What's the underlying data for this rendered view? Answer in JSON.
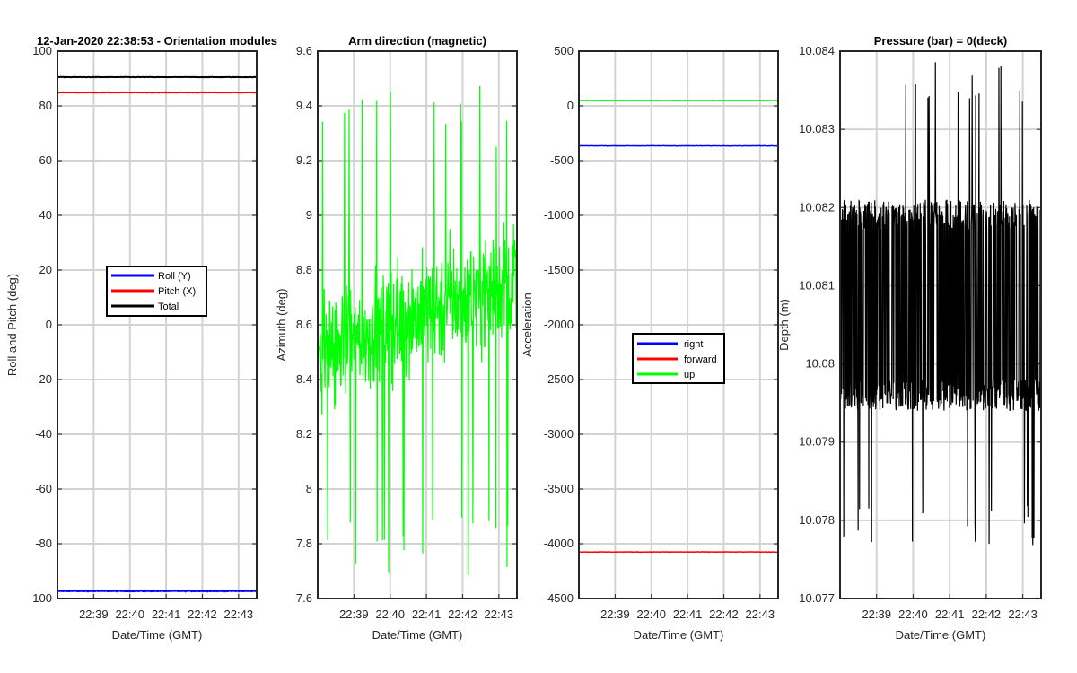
{
  "figure": {
    "background": "#ffffff",
    "grid_color": "#d3d3d3"
  },
  "chart_data": [
    {
      "type": "line",
      "title": "12-Jan-2020 22:38:53 - Orientation modules",
      "xlabel": "Date/Time (GMT)",
      "ylabel": "Roll and Pitch (deg)",
      "x_ticks": [
        "22:39",
        "22:40",
        "22:41",
        "22:42",
        "22:43"
      ],
      "xlim_minutes": [
        0,
        5.5
      ],
      "ylim": [
        -100,
        100
      ],
      "y_ticks": [
        "100",
        "80",
        "60",
        "40",
        "20",
        "0",
        "-20",
        "-40",
        "-60",
        "-80",
        "-100"
      ],
      "grid": true,
      "legend": {
        "placement": "center",
        "entries": [
          "Roll (Y)",
          "Pitch (X)",
          "Total"
        ]
      },
      "series": [
        {
          "name": "Roll (Y)",
          "color": "#0000ff",
          "mean": -97.3,
          "noise": 0.25
        },
        {
          "name": "Pitch (X)",
          "color": "#ff0000",
          "mean": 84.9,
          "noise": 0.15
        },
        {
          "name": "Total",
          "color": "#000000",
          "mean": 90.5,
          "noise": 0.15
        }
      ]
    },
    {
      "type": "line",
      "title": "Arm direction (magnetic)",
      "xlabel": "Date/Time (GMT)",
      "ylabel": "Azimuth (deg)",
      "x_ticks": [
        "22:39",
        "22:40",
        "22:41",
        "22:42",
        "22:43"
      ],
      "xlim_minutes": [
        0,
        5.5
      ],
      "ylim": [
        7.6,
        9.6
      ],
      "y_ticks": [
        "9.6",
        "9.4",
        "9.2",
        "9",
        "8.8",
        "8.6",
        "8.4",
        "8.2",
        "8",
        "7.8",
        "7.6"
      ],
      "grid": true,
      "series": [
        {
          "name": "",
          "color": "#00ff00",
          "mean": 8.5,
          "noise": 0.3,
          "spike_low": 7.65,
          "spike_high": 9.55,
          "trend": 0.05
        }
      ]
    },
    {
      "type": "line",
      "title": "",
      "xlabel": "Date/Time (GMT)",
      "ylabel": "Acceleration",
      "x_ticks": [
        "22:39",
        "22:40",
        "22:41",
        "22:42",
        "22:43"
      ],
      "xlim_minutes": [
        0,
        5.5
      ],
      "ylim": [
        -4500,
        500
      ],
      "y_ticks": [
        "500",
        "0",
        "-500",
        "-1000",
        "-1500",
        "-2000",
        "-2500",
        "-3000",
        "-3500",
        "-4000",
        "-4500"
      ],
      "grid": true,
      "legend": {
        "placement": "center-right",
        "entries": [
          "right",
          "forward",
          "up"
        ]
      },
      "series": [
        {
          "name": "right",
          "color": "#0000ff",
          "mean": -365,
          "noise": 3
        },
        {
          "name": "forward",
          "color": "#ff0000",
          "mean": -4075,
          "noise": 4
        },
        {
          "name": "up",
          "color": "#00ff00",
          "mean": 50,
          "noise": 3
        }
      ]
    },
    {
      "type": "line",
      "title": "Pressure (bar) = 0(deck)",
      "xlabel": "Date/Time (GMT)",
      "ylabel": "Depth (m)",
      "x_ticks": [
        "22:39",
        "22:40",
        "22:41",
        "22:42",
        "22:43"
      ],
      "xlim_minutes": [
        0,
        5.5
      ],
      "ylim": [
        10.077,
        10.084
      ],
      "y_ticks": [
        "10.084",
        "10.083",
        "10.082",
        "10.081",
        "10.08",
        "10.079",
        "10.078",
        "10.077"
      ],
      "grid": true,
      "series": [
        {
          "name": "",
          "color": "#000000",
          "mean": 10.0807,
          "low": 10.0796,
          "high": 10.0819,
          "spike_low": 10.0776,
          "spike_high": 10.0839
        }
      ]
    }
  ]
}
